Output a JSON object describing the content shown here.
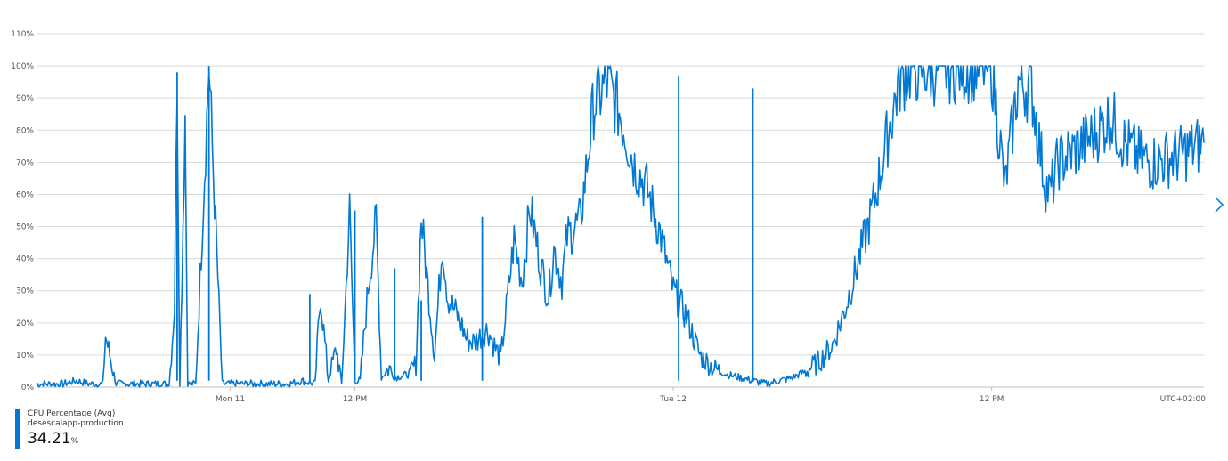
{
  "chart_data": {
    "type": "line",
    "yticks": [
      "0%",
      "10%",
      "20%",
      "30%",
      "40%",
      "50%",
      "60%",
      "70%",
      "80%",
      "90%",
      "100%",
      "110%"
    ],
    "ylim": [
      0,
      110
    ],
    "xlim_hours": [
      0,
      44
    ],
    "xticks": [
      {
        "label": "Mon 11",
        "hour": 7.3
      },
      {
        "label": "12 PM",
        "hour": 12
      },
      {
        "label": "Tue 12",
        "hour": 24
      },
      {
        "label": "12 PM",
        "hour": 36
      }
    ],
    "timezone_label": "UTC+02:00",
    "grid": true,
    "series": [
      {
        "name": "CPU Percentage (Avg)",
        "color": "#0078d4",
        "x_hours": [
          0,
          0.5,
          1,
          1.5,
          2,
          2.5,
          2.6,
          3,
          4,
          5,
          5.2,
          5.3,
          5.4,
          5.6,
          5.7,
          6,
          6.5,
          7,
          7.5,
          8,
          8.5,
          9,
          9.5,
          10,
          10.5,
          10.7,
          11,
          11.3,
          11.5,
          11.8,
          12,
          12.2,
          12.5,
          12.8,
          13,
          13.3,
          13.5,
          14,
          14.3,
          14.5,
          15,
          15.3,
          15.5,
          16,
          16.2,
          16.5,
          17,
          17.3,
          17.5,
          18,
          18.3,
          18.6,
          19,
          19.3,
          19.5,
          19.8,
          20,
          20.5,
          21,
          21.5,
          22,
          22.5,
          23,
          23.5,
          24,
          24.5,
          25,
          25.5,
          26,
          26.5,
          27,
          27.5,
          28,
          28.5,
          29,
          29.5,
          30,
          30.5,
          31,
          31.5,
          32,
          32.5,
          33,
          33.5,
          34,
          34.5,
          35,
          35.5,
          36,
          36.5,
          37,
          37.5,
          38,
          38.2,
          38.5,
          39,
          39.5,
          40,
          40.5,
          41,
          41.5,
          42,
          42.5,
          43,
          43.5,
          44
        ],
        "y": [
          1,
          1,
          1,
          2,
          1,
          1,
          16,
          1,
          1,
          1,
          25,
          98,
          1,
          85,
          1,
          1,
          100,
          1,
          1,
          1,
          1,
          1,
          1,
          2,
          1,
          29,
          2,
          12,
          1,
          55,
          2,
          2,
          31,
          52,
          3,
          6,
          3,
          4,
          7,
          53,
          10,
          45,
          28,
          20,
          15,
          14,
          18,
          12,
          9,
          46,
          33,
          56,
          38,
          28,
          43,
          33,
          47,
          52,
          88,
          95,
          85,
          70,
          62,
          48,
          30,
          22,
          10,
          6,
          4,
          3,
          2,
          1,
          2,
          3,
          5,
          8,
          13,
          25,
          40,
          55,
          75,
          95,
          100,
          99,
          99,
          100,
          100,
          100,
          100,
          62,
          95,
          93,
          64,
          60,
          70,
          73,
          76,
          80,
          84,
          76,
          72,
          70,
          71,
          72,
          74,
          76
        ],
        "spikes": [
          {
            "hour": 5.3,
            "value": 98
          },
          {
            "hour": 6.5,
            "value": 100
          },
          {
            "hour": 10.3,
            "value": 29
          },
          {
            "hour": 12.0,
            "value": 55
          },
          {
            "hour": 13.5,
            "value": 37
          },
          {
            "hour": 14.5,
            "value": 27
          },
          {
            "hour": 16.8,
            "value": 53
          },
          {
            "hour": 24.2,
            "value": 97
          },
          {
            "hour": 27.0,
            "value": 93
          }
        ]
      }
    ]
  },
  "legend": {
    "metric": "CPU Percentage (Avg)",
    "resource": "desescalapp-production",
    "value": "34.21",
    "unit": "%"
  },
  "colors": {
    "line": "#0078d4",
    "grid": "#d9d9d9"
  },
  "icons": {
    "next": "chevron-right-icon"
  }
}
